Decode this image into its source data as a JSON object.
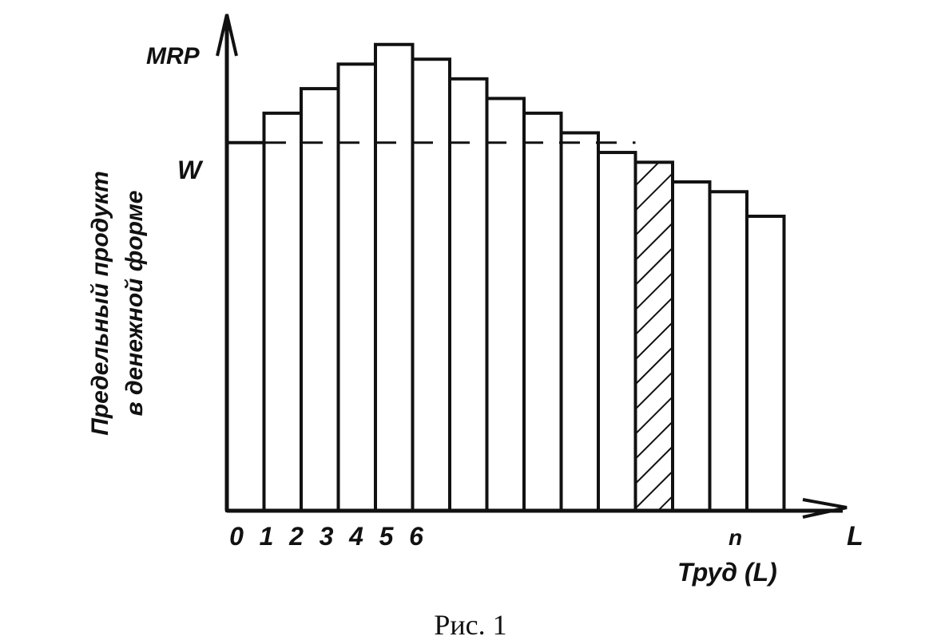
{
  "chart_data": {
    "type": "bar",
    "title": "",
    "caption": "Рис. 1",
    "y_axis_label": "MRP",
    "y_axis_title_line1": "Предельный продукт",
    "y_axis_title_line2": "в денежной форме",
    "x_axis_label": "L",
    "x_axis_title": "Труд (L)",
    "wage_label": "W",
    "wage_level": 7.5,
    "ylim": [
      0,
      10
    ],
    "grid": false,
    "legend": "none",
    "tick_labels": [
      {
        "label": "0",
        "position": 0
      },
      {
        "label": "1",
        "position": 1
      },
      {
        "label": "2",
        "position": 2
      },
      {
        "label": "3",
        "position": 3
      },
      {
        "label": "4",
        "position": 4
      },
      {
        "label": "5",
        "position": 5
      },
      {
        "label": "6",
        "position": 6
      },
      {
        "label": "n",
        "position": 13
      }
    ],
    "values": [
      7.5,
      8.1,
      8.6,
      9.1,
      9.5,
      9.2,
      8.8,
      8.4,
      8.1,
      7.7,
      7.3,
      7.1,
      6.7,
      6.5,
      6.0
    ],
    "hatched_bar_index": 11
  }
}
